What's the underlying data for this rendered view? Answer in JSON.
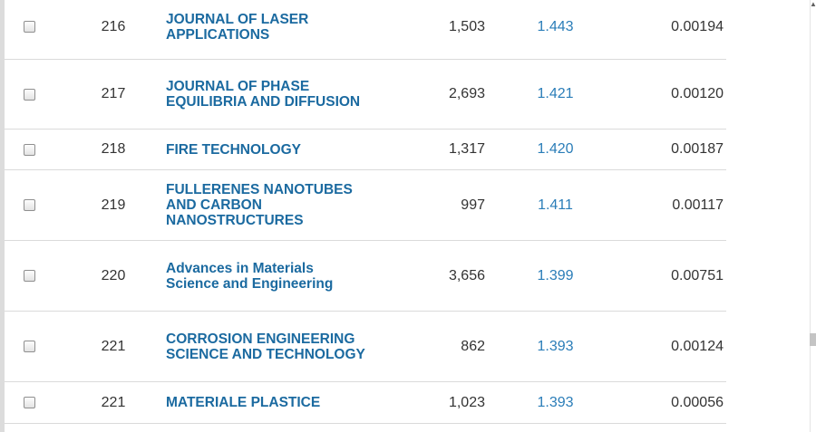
{
  "table": {
    "rows": [
      {
        "rank": "216",
        "title": [
          "JOURNAL OF LASER",
          "APPLICATIONS"
        ],
        "cites": "1,503",
        "impact": "1.443",
        "eigen": "0.00194"
      },
      {
        "rank": "217",
        "title": [
          "JOURNAL OF PHASE",
          "EQUILIBRIA AND DIFFUSION"
        ],
        "cites": "2,693",
        "impact": "1.421",
        "eigen": "0.00120"
      },
      {
        "rank": "218",
        "title": [
          "FIRE TECHNOLOGY"
        ],
        "cites": "1,317",
        "impact": "1.420",
        "eigen": "0.00187"
      },
      {
        "rank": "219",
        "title": [
          "FULLERENES NANOTUBES",
          "AND CARBON",
          "NANOSTRUCTURES"
        ],
        "cites": "997",
        "impact": "1.411",
        "eigen": "0.00117"
      },
      {
        "rank": "220",
        "title": [
          "Advances in Materials",
          "Science and Engineering"
        ],
        "cites": "3,656",
        "impact": "1.399",
        "eigen": "0.00751"
      },
      {
        "rank": "221",
        "title": [
          "CORROSION ENGINEERING",
          "SCIENCE AND TECHNOLOGY"
        ],
        "cites": "862",
        "impact": "1.393",
        "eigen": "0.00124"
      },
      {
        "rank": "221",
        "title": [
          "MATERIALE PLASTICE"
        ],
        "cites": "1,023",
        "impact": "1.393",
        "eigen": "0.00056"
      }
    ]
  },
  "scrollbar": {
    "up_arrow_icon": "chevron-up-icon"
  }
}
